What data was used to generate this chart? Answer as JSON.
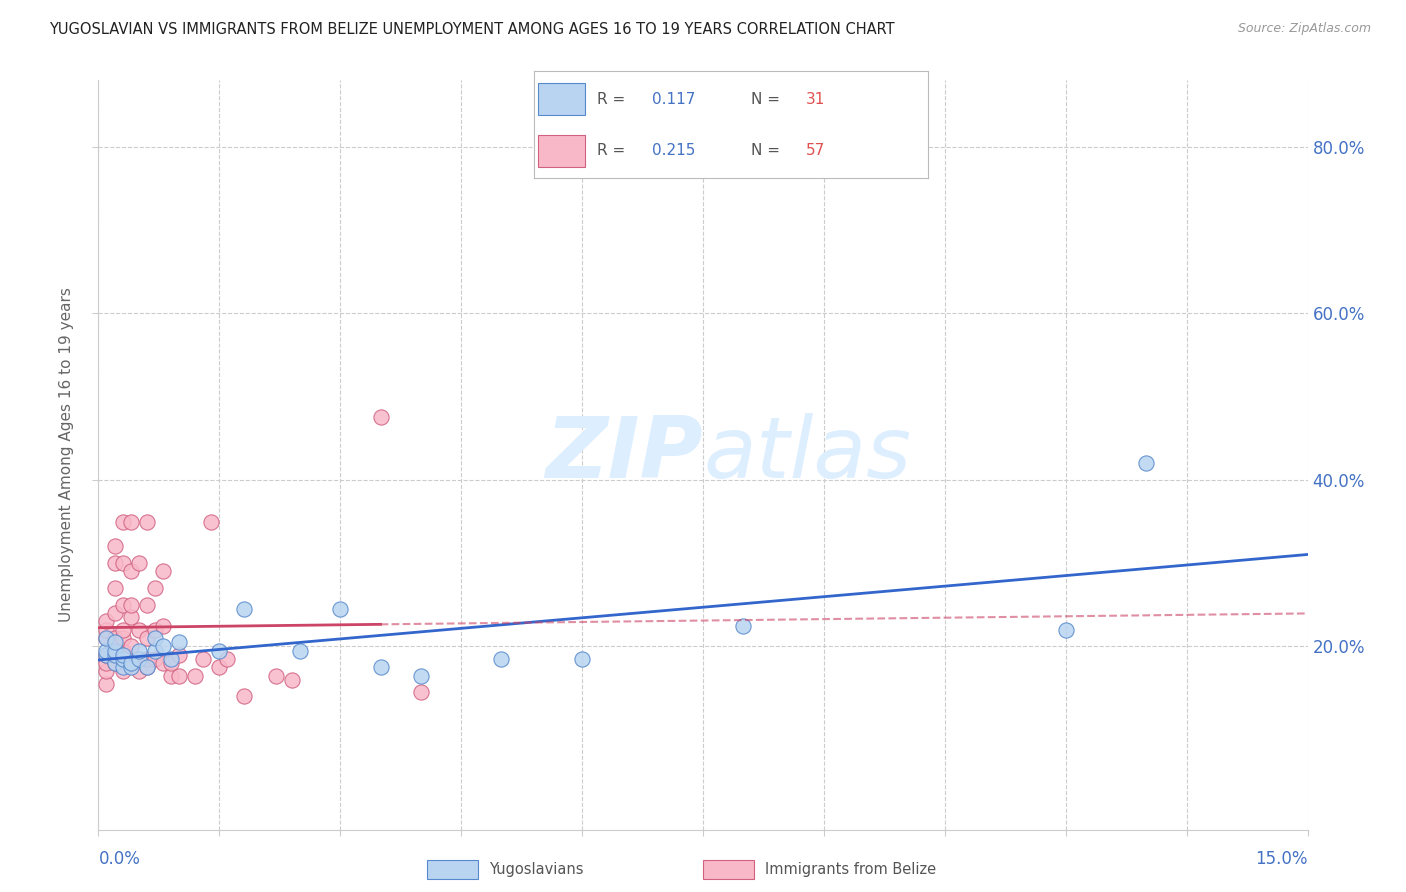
{
  "title": "YUGOSLAVIAN VS IMMIGRANTS FROM BELIZE UNEMPLOYMENT AMONG AGES 16 TO 19 YEARS CORRELATION CHART",
  "source": "Source: ZipAtlas.com",
  "ylabel": "Unemployment Among Ages 16 to 19 years",
  "y_ticks": [
    0.2,
    0.4,
    0.6,
    0.8
  ],
  "y_tick_labels": [
    "20.0%",
    "40.0%",
    "60.0%",
    "80.0%"
  ],
  "xlim": [
    0.0,
    0.15
  ],
  "ylim": [
    -0.02,
    0.88
  ],
  "series1_label": "Yugoslavians",
  "series1_R": 0.117,
  "series1_N": 31,
  "series1_color": "#b8d4f0",
  "series1_edge_color": "#5588cc",
  "series1_line_color": "#3366cc",
  "series2_label": "Immigrants from Belize",
  "series2_R": 0.215,
  "series2_N": 57,
  "series2_color": "#f8b8c8",
  "series2_edge_color": "#d06080",
  "series2_line_color": "#cc4466",
  "background_color": "#ffffff",
  "grid_color": "#cccccc",
  "watermark_color": "#ddeeff",
  "yugoslav_x": [
    0.001,
    0.001,
    0.001,
    0.002,
    0.002,
    0.002,
    0.002,
    0.003,
    0.003,
    0.003,
    0.004,
    0.004,
    0.005,
    0.005,
    0.006,
    0.007,
    0.007,
    0.008,
    0.009,
    0.01,
    0.015,
    0.018,
    0.025,
    0.03,
    0.035,
    0.04,
    0.05,
    0.06,
    0.08,
    0.12,
    0.13
  ],
  "yugoslav_y": [
    0.19,
    0.195,
    0.21,
    0.18,
    0.19,
    0.195,
    0.205,
    0.175,
    0.185,
    0.19,
    0.175,
    0.18,
    0.185,
    0.195,
    0.175,
    0.195,
    0.21,
    0.2,
    0.185,
    0.205,
    0.195,
    0.245,
    0.195,
    0.245,
    0.175,
    0.165,
    0.185,
    0.185,
    0.225,
    0.22,
    0.42
  ],
  "belize_x": [
    0.001,
    0.001,
    0.001,
    0.001,
    0.001,
    0.001,
    0.001,
    0.002,
    0.002,
    0.002,
    0.002,
    0.002,
    0.002,
    0.002,
    0.002,
    0.003,
    0.003,
    0.003,
    0.003,
    0.003,
    0.003,
    0.003,
    0.003,
    0.004,
    0.004,
    0.004,
    0.004,
    0.004,
    0.005,
    0.005,
    0.005,
    0.005,
    0.006,
    0.006,
    0.006,
    0.006,
    0.006,
    0.007,
    0.007,
    0.007,
    0.008,
    0.008,
    0.008,
    0.009,
    0.009,
    0.01,
    0.01,
    0.012,
    0.013,
    0.014,
    0.015,
    0.016,
    0.018,
    0.022,
    0.024,
    0.035,
    0.04
  ],
  "belize_y": [
    0.155,
    0.17,
    0.18,
    0.19,
    0.21,
    0.22,
    0.23,
    0.18,
    0.19,
    0.2,
    0.21,
    0.24,
    0.27,
    0.3,
    0.32,
    0.17,
    0.185,
    0.195,
    0.21,
    0.22,
    0.25,
    0.3,
    0.35,
    0.2,
    0.235,
    0.25,
    0.29,
    0.35,
    0.17,
    0.185,
    0.22,
    0.3,
    0.175,
    0.185,
    0.21,
    0.25,
    0.35,
    0.185,
    0.22,
    0.27,
    0.18,
    0.225,
    0.29,
    0.165,
    0.18,
    0.165,
    0.19,
    0.165,
    0.185,
    0.35,
    0.175,
    0.185,
    0.14,
    0.165,
    0.16,
    0.475,
    0.145
  ]
}
